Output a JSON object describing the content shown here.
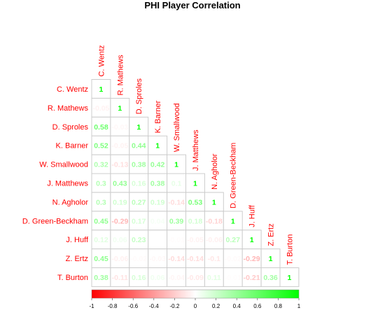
{
  "chart_data": {
    "type": "heatmap",
    "title": "PHI Player Correlation",
    "players": [
      "C. Wentz",
      "R. Mathews",
      "D. Sproles",
      "K. Barner",
      "W. Smallwood",
      "J. Matthews",
      "N. Agholor",
      "D. Green-Beckham",
      "J. Huff",
      "Z. Ertz",
      "T. Burton"
    ],
    "matrix": [
      [
        1
      ],
      [
        -0.05,
        1
      ],
      [
        0.58,
        -0.03,
        1
      ],
      [
        0.52,
        -0.05,
        0.44,
        1
      ],
      [
        0.32,
        -0.13,
        0.38,
        0.42,
        1
      ],
      [
        0.3,
        0.43,
        0.16,
        0.38,
        0.1,
        1
      ],
      [
        0.3,
        0.19,
        0.27,
        0.19,
        -0.14,
        0.53,
        1
      ],
      [
        0.45,
        -0.29,
        0.17,
        0.04,
        0.39,
        0.18,
        -0.18,
        1
      ],
      [
        0.12,
        0.06,
        0.23,
        0,
        -0.01,
        -0.05,
        -0.06,
        0.27,
        1
      ],
      [
        0.45,
        -0.06,
        -0.02,
        -0.03,
        -0.14,
        -0.14,
        -0.1,
        -0.02,
        -0.29,
        1
      ],
      [
        0.38,
        -0.11,
        0.16,
        0.06,
        -0.04,
        -0.09,
        0.11,
        -0.01,
        -0.21,
        0.36,
        1
      ]
    ],
    "matrix_labels": [
      [
        "1"
      ],
      [
        "-0.05",
        "1"
      ],
      [
        "0.58",
        "-0.03",
        "1"
      ],
      [
        "0.52",
        "-0.05",
        "0.44",
        "1"
      ],
      [
        "0.32",
        "-0.13",
        "0.38",
        "0.42",
        "1"
      ],
      [
        "0.3",
        "0.43",
        "0.16",
        "0.38",
        "0.1",
        "1"
      ],
      [
        "0.3",
        "0.19",
        "0.27",
        "0.19",
        "-0.14",
        "0.53",
        "1"
      ],
      [
        "0.45",
        "-0.29",
        "0.17",
        "0.04",
        "0.39",
        "0.18",
        "-0.18",
        "1"
      ],
      [
        "0.12",
        "0.06",
        "0.23",
        "0",
        "-0.01",
        "-0.05",
        "-0.06",
        "0.27",
        "1"
      ],
      [
        "0.45",
        "-0.06",
        "-0.02",
        "-0.03",
        "-0.14",
        "-0.14",
        "-0.1",
        "-0.02",
        "-0.29",
        "1"
      ],
      [
        "0.38",
        "-0.11",
        "0.16",
        "0.06",
        "-0.04",
        "-0.09",
        "0.11",
        "-0.01",
        "-0.21",
        "0.36",
        "1"
      ]
    ],
    "color_range": [
      -1,
      1
    ],
    "color_low": "#ff0000",
    "color_mid": "#ffffff",
    "color_high": "#00ff00",
    "label_color": "#ff0000",
    "colorbar_ticks": [
      -1,
      -0.8,
      -0.6,
      -0.4,
      -0.2,
      0,
      0.2,
      0.4,
      0.6,
      0.8,
      1
    ],
    "colorbar_tick_labels": [
      "-1",
      "-0.8",
      "-0.6",
      "-0.4",
      "-0.2",
      "0",
      "0.2",
      "0.4",
      "0.6",
      "0.8",
      "1"
    ]
  }
}
